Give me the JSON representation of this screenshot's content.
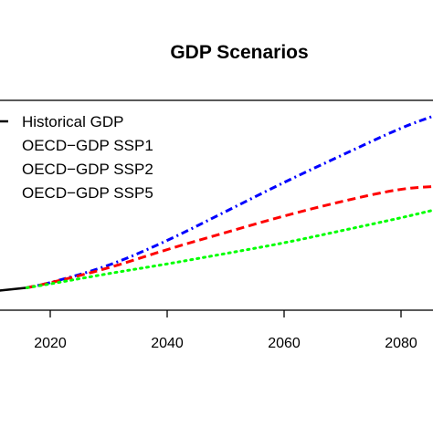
{
  "chart_data": {
    "type": "line",
    "title": "GDP Scenarios",
    "xlabel": "",
    "ylabel": "",
    "xlim": [
      2010,
      2086
    ],
    "ylim": [
      0,
      100
    ],
    "xticks": [
      2020,
      2040,
      2060,
      2080
    ],
    "grid": false,
    "legend_position": "top-left",
    "series": [
      {
        "name": "Historical GDP",
        "color": "#000000",
        "style": "solid",
        "x": [
          2010,
          2013,
          2016
        ],
        "y": [
          9,
          9.8,
          10.7
        ]
      },
      {
        "name": "OECD−GDP SSP1",
        "color": "#0000ff",
        "style": "dashdot",
        "x": [
          2016,
          2020,
          2030,
          2040,
          2050,
          2060,
          2070,
          2080,
          2086
        ],
        "y": [
          10.7,
          13,
          21,
          33,
          47,
          61,
          74,
          87,
          93
        ]
      },
      {
        "name": "OECD−GDP SSP2",
        "color": "#ff0000",
        "style": "dashed",
        "x": [
          2016,
          2020,
          2030,
          2040,
          2050,
          2060,
          2070,
          2080,
          2086
        ],
        "y": [
          10.7,
          13,
          20,
          29,
          37,
          45,
          52,
          58,
          59
        ]
      },
      {
        "name": "OECD−GDP SSP5",
        "color": "#00ff00",
        "style": "dotted",
        "x": [
          2016,
          2020,
          2030,
          2040,
          2050,
          2060,
          2070,
          2080,
          2086
        ],
        "y": [
          10.7,
          12.5,
          17.5,
          22,
          27,
          32,
          38,
          44,
          48
        ]
      }
    ]
  }
}
